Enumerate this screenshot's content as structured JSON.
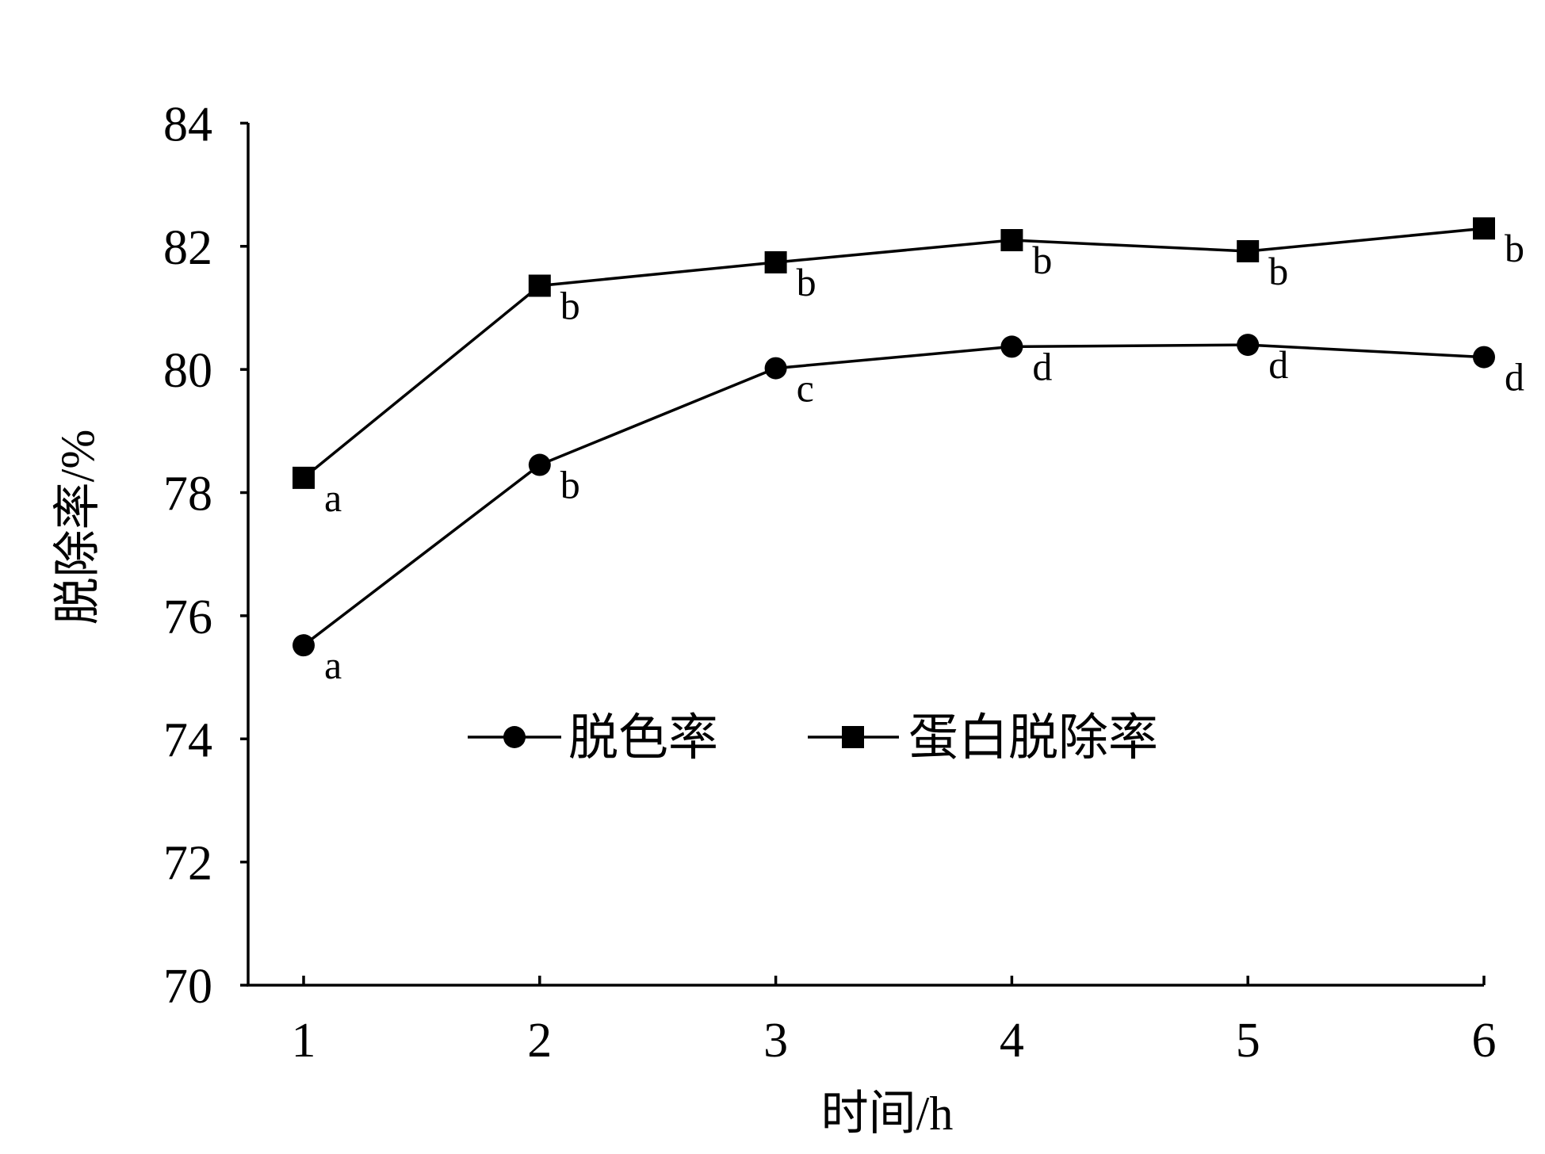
{
  "chart_data": {
    "type": "line",
    "x": [
      1,
      2,
      3,
      4,
      5,
      6
    ],
    "xticks": [
      1,
      2,
      3,
      4,
      5,
      6
    ],
    "yticks": [
      70,
      72,
      74,
      76,
      78,
      80,
      82,
      84
    ],
    "xlim": [
      1,
      6
    ],
    "ylim": [
      70,
      84
    ],
    "xlabel": "时间/h",
    "ylabel": "脱除率/%",
    "grid": false,
    "legend": "center",
    "color": "#000000",
    "series": [
      {
        "name": "脱色率",
        "marker": "circle",
        "values": [
          75.52,
          78.45,
          80.02,
          80.37,
          80.4,
          80.2
        ],
        "labels": [
          "a",
          "b",
          "c",
          "d",
          "d",
          "d"
        ]
      },
      {
        "name": "蛋白脱除率",
        "marker": "square",
        "values": [
          78.24,
          81.36,
          81.74,
          82.1,
          81.92,
          82.29
        ],
        "labels": [
          "a",
          "b",
          "b",
          "b",
          "b",
          "b"
        ]
      }
    ]
  }
}
